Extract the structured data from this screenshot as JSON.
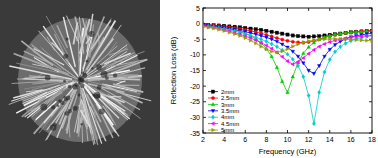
{
  "chart_data": {
    "type": "line",
    "x_label": "Frequency (GHz)",
    "y_label": "Reflection Loss (dB)",
    "x": [
      2,
      2.5,
      3,
      3.5,
      4,
      4.5,
      5,
      5.5,
      6,
      6.5,
      7,
      7.5,
      8,
      8.5,
      9,
      9.5,
      10,
      10.5,
      11,
      11.5,
      12,
      12.5,
      13,
      13.5,
      14,
      14.5,
      15,
      15.5,
      16,
      16.5,
      17,
      17.5,
      18
    ],
    "xlim": [
      2,
      18
    ],
    "xticks": [
      2,
      4,
      6,
      8,
      10,
      12,
      14,
      16,
      18
    ],
    "ylim": [
      -35,
      5
    ],
    "yticks": [
      5,
      0,
      -5,
      -10,
      -15,
      -20,
      -25,
      -30,
      -35
    ],
    "grid": false,
    "legend": "lower left",
    "series": [
      {
        "name": "2mm",
        "color": "#000000",
        "marker": "square",
        "line_style": "solid",
        "values": [
          -0.3,
          -0.4,
          -0.5,
          -0.6,
          -0.7,
          -0.9,
          -1.0,
          -1.2,
          -1.4,
          -1.6,
          -1.8,
          -2.0,
          -2.3,
          -2.6,
          -2.9,
          -3.2,
          -3.5,
          -3.8,
          -4.0,
          -4.1,
          -4.2,
          -4.1,
          -4.0,
          -3.8,
          -3.6,
          -3.4,
          -3.2,
          -3.0,
          -2.8,
          -2.6,
          -2.5,
          -2.4,
          -2.3
        ]
      },
      {
        "name": "2.5mm",
        "color": "#ff0000",
        "marker": "circle",
        "line_style": "solid",
        "values": [
          -0.4,
          -0.5,
          -0.6,
          -0.8,
          -1.0,
          -1.2,
          -1.4,
          -1.7,
          -2.0,
          -2.3,
          -2.7,
          -3.1,
          -3.6,
          -4.1,
          -4.6,
          -5.1,
          -5.5,
          -5.8,
          -6.0,
          -6.1,
          -5.9,
          -5.5,
          -5.0,
          -4.5,
          -4.0,
          -3.6,
          -3.3,
          -3.0,
          -2.8,
          -2.6,
          -2.5,
          -2.4,
          -2.3
        ]
      },
      {
        "name": "3mm",
        "color": "#00cc00",
        "marker": "triangle-up",
        "line_style": "solid",
        "values": [
          -0.5,
          -0.6,
          -0.8,
          -1.0,
          -1.3,
          -1.6,
          -2.0,
          -2.5,
          -3.1,
          -3.9,
          -4.9,
          -6.2,
          -8.0,
          -10.5,
          -14.0,
          -18.5,
          -22.0,
          -17.0,
          -12.5,
          -9.5,
          -7.5,
          -6.1,
          -5.1,
          -4.4,
          -3.9,
          -3.5,
          -3.2,
          -3.0,
          -2.8,
          -2.7,
          -2.6,
          -2.5,
          -2.5
        ]
      },
      {
        "name": "3.5mm",
        "color": "#0000ff",
        "marker": "triangle-down",
        "line_style": "solid",
        "values": [
          -0.6,
          -0.7,
          -0.9,
          -1.1,
          -1.3,
          -1.6,
          -1.9,
          -2.2,
          -2.6,
          -3.0,
          -3.4,
          -3.9,
          -4.4,
          -5.0,
          -5.7,
          -6.6,
          -7.6,
          -8.9,
          -10.5,
          -12.6,
          -15.0,
          -16.0,
          -13.5,
          -10.5,
          -8.3,
          -6.8,
          -5.7,
          -4.9,
          -4.3,
          -3.9,
          -3.6,
          -3.3,
          -3.1
        ]
      },
      {
        "name": "4mm",
        "color": "#00cccc",
        "marker": "diamond",
        "line_style": "solid",
        "values": [
          -0.7,
          -0.9,
          -1.1,
          -1.4,
          -1.7,
          -2.0,
          -2.4,
          -2.8,
          -3.3,
          -3.8,
          -4.4,
          -5.0,
          -5.7,
          -6.5,
          -7.4,
          -8.5,
          -9.8,
          -11.4,
          -13.5,
          -17.0,
          -23.0,
          -32.0,
          -22.0,
          -15.5,
          -11.5,
          -9.0,
          -7.4,
          -6.3,
          -5.5,
          -4.9,
          -4.5,
          -4.1,
          -3.8
        ]
      },
      {
        "name": "4.5mm",
        "color": "#ff00ff",
        "marker": "triangle-left",
        "line_style": "solid",
        "values": [
          -0.8,
          -1.0,
          -1.3,
          -1.6,
          -2.0,
          -2.4,
          -2.9,
          -3.4,
          -4.0,
          -4.6,
          -5.3,
          -6.1,
          -7.0,
          -8.0,
          -9.2,
          -10.6,
          -12.0,
          -13.0,
          -12.2,
          -11.0,
          -9.6,
          -8.4,
          -7.3,
          -6.5,
          -5.9,
          -5.4,
          -5.0,
          -4.7,
          -4.4,
          -4.2,
          -4.0,
          -3.9,
          -3.8
        ]
      },
      {
        "name": "5mm",
        "color": "#999900",
        "marker": "triangle-right",
        "line_style": "solid",
        "values": [
          -0.9,
          -1.2,
          -1.5,
          -1.9,
          -2.3,
          -2.8,
          -3.3,
          -3.9,
          -4.6,
          -5.4,
          -6.3,
          -7.3,
          -8.2,
          -8.9,
          -9.2,
          -8.8,
          -8.1,
          -7.3,
          -6.6,
          -6.0,
          -5.6,
          -5.3,
          -5.1,
          -5.0,
          -4.9,
          -4.9,
          -4.9,
          -5.0,
          -5.1,
          -5.2,
          -5.3,
          -5.4,
          -5.5
        ]
      }
    ]
  }
}
